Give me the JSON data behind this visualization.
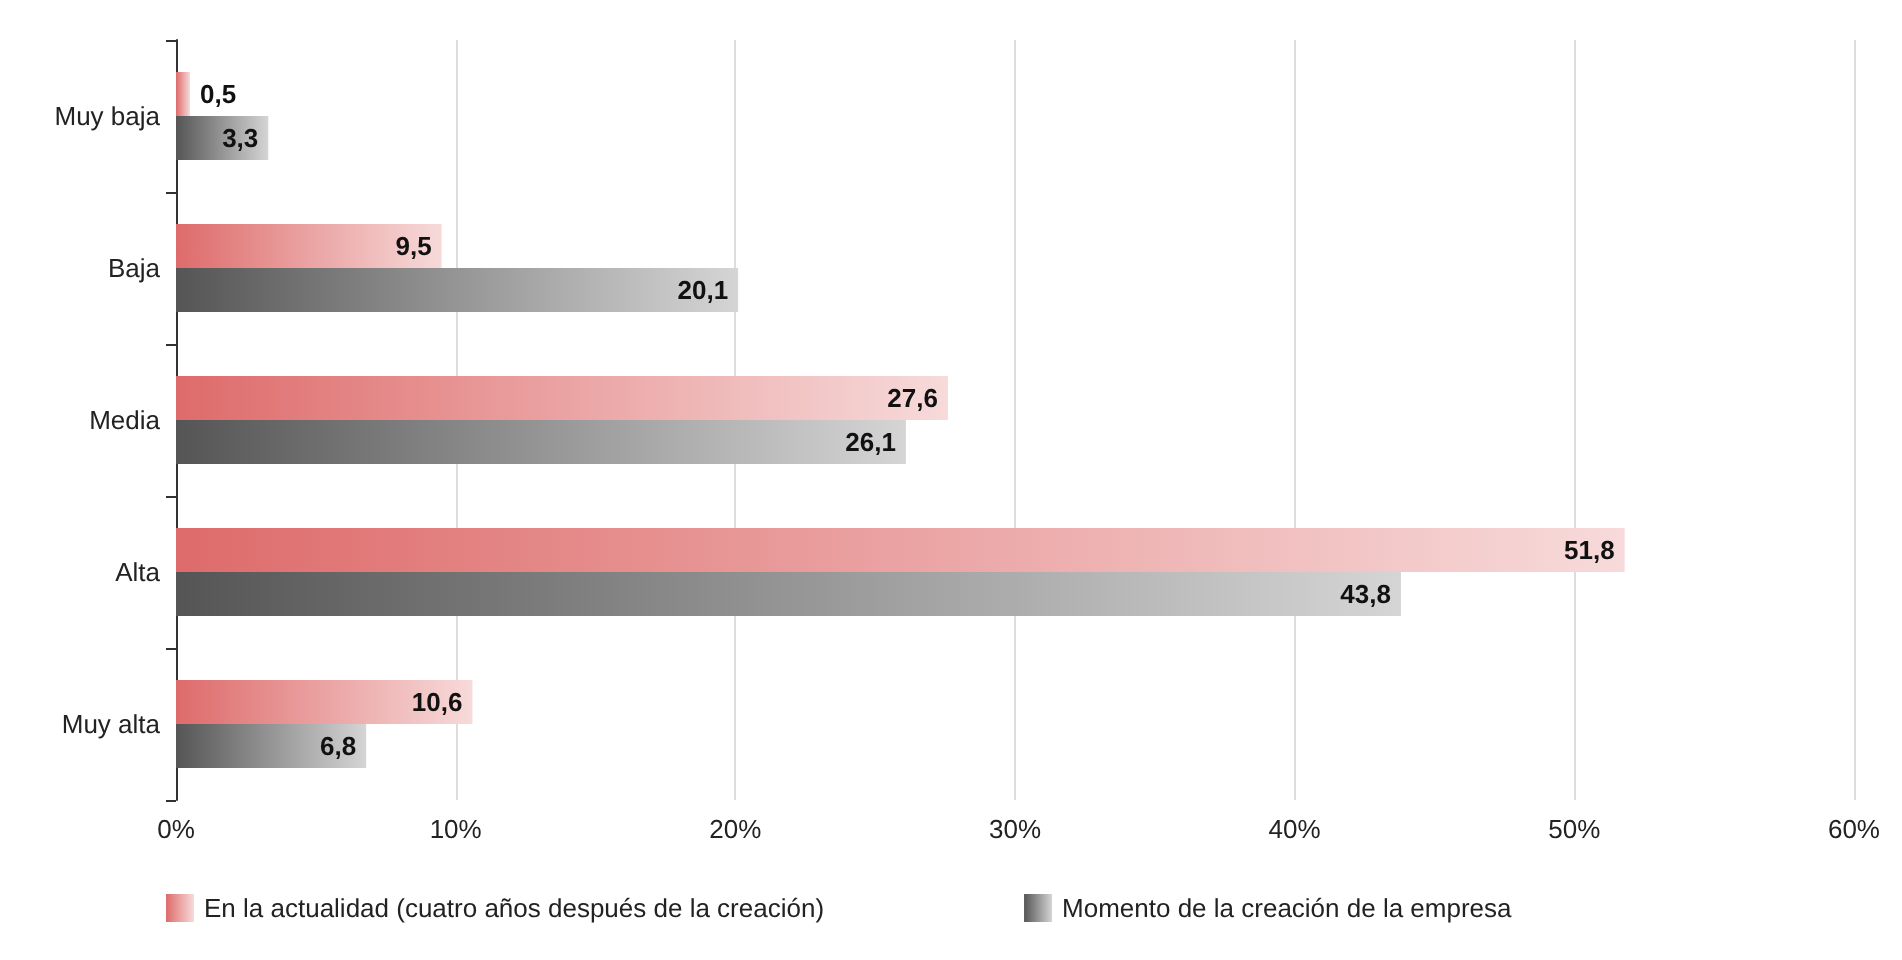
{
  "chart_data": {
    "type": "bar",
    "orientation": "horizontal",
    "categories": [
      "Muy baja",
      "Baja",
      "Media",
      "Alta",
      "Muy alta"
    ],
    "series": [
      {
        "name": "En la actualidad (cuatro años después de la creación)",
        "color": "#de6b6b",
        "values": [
          0.5,
          9.5,
          27.6,
          51.8,
          10.6
        ],
        "value_labels": [
          "0,5",
          "9,5",
          "27,6",
          "51,8",
          "10,6"
        ]
      },
      {
        "name": "Momento de la creación de la empresa",
        "color": "#555555",
        "values": [
          3.3,
          20.1,
          26.1,
          43.8,
          6.8
        ],
        "value_labels": [
          "3,3",
          "20,1",
          "26,1",
          "43,8",
          "6,8"
        ]
      }
    ],
    "xlim": [
      0,
      60
    ],
    "xticks": [
      {
        "value": 0,
        "label": "0%"
      },
      {
        "value": 10,
        "label": "10%"
      },
      {
        "value": 20,
        "label": "20%"
      },
      {
        "value": 30,
        "label": "30%"
      },
      {
        "value": 40,
        "label": "40%"
      },
      {
        "value": 50,
        "label": "50%"
      },
      {
        "value": 60,
        "label": "60%"
      }
    ],
    "grid": "x",
    "legend": "bottom"
  }
}
